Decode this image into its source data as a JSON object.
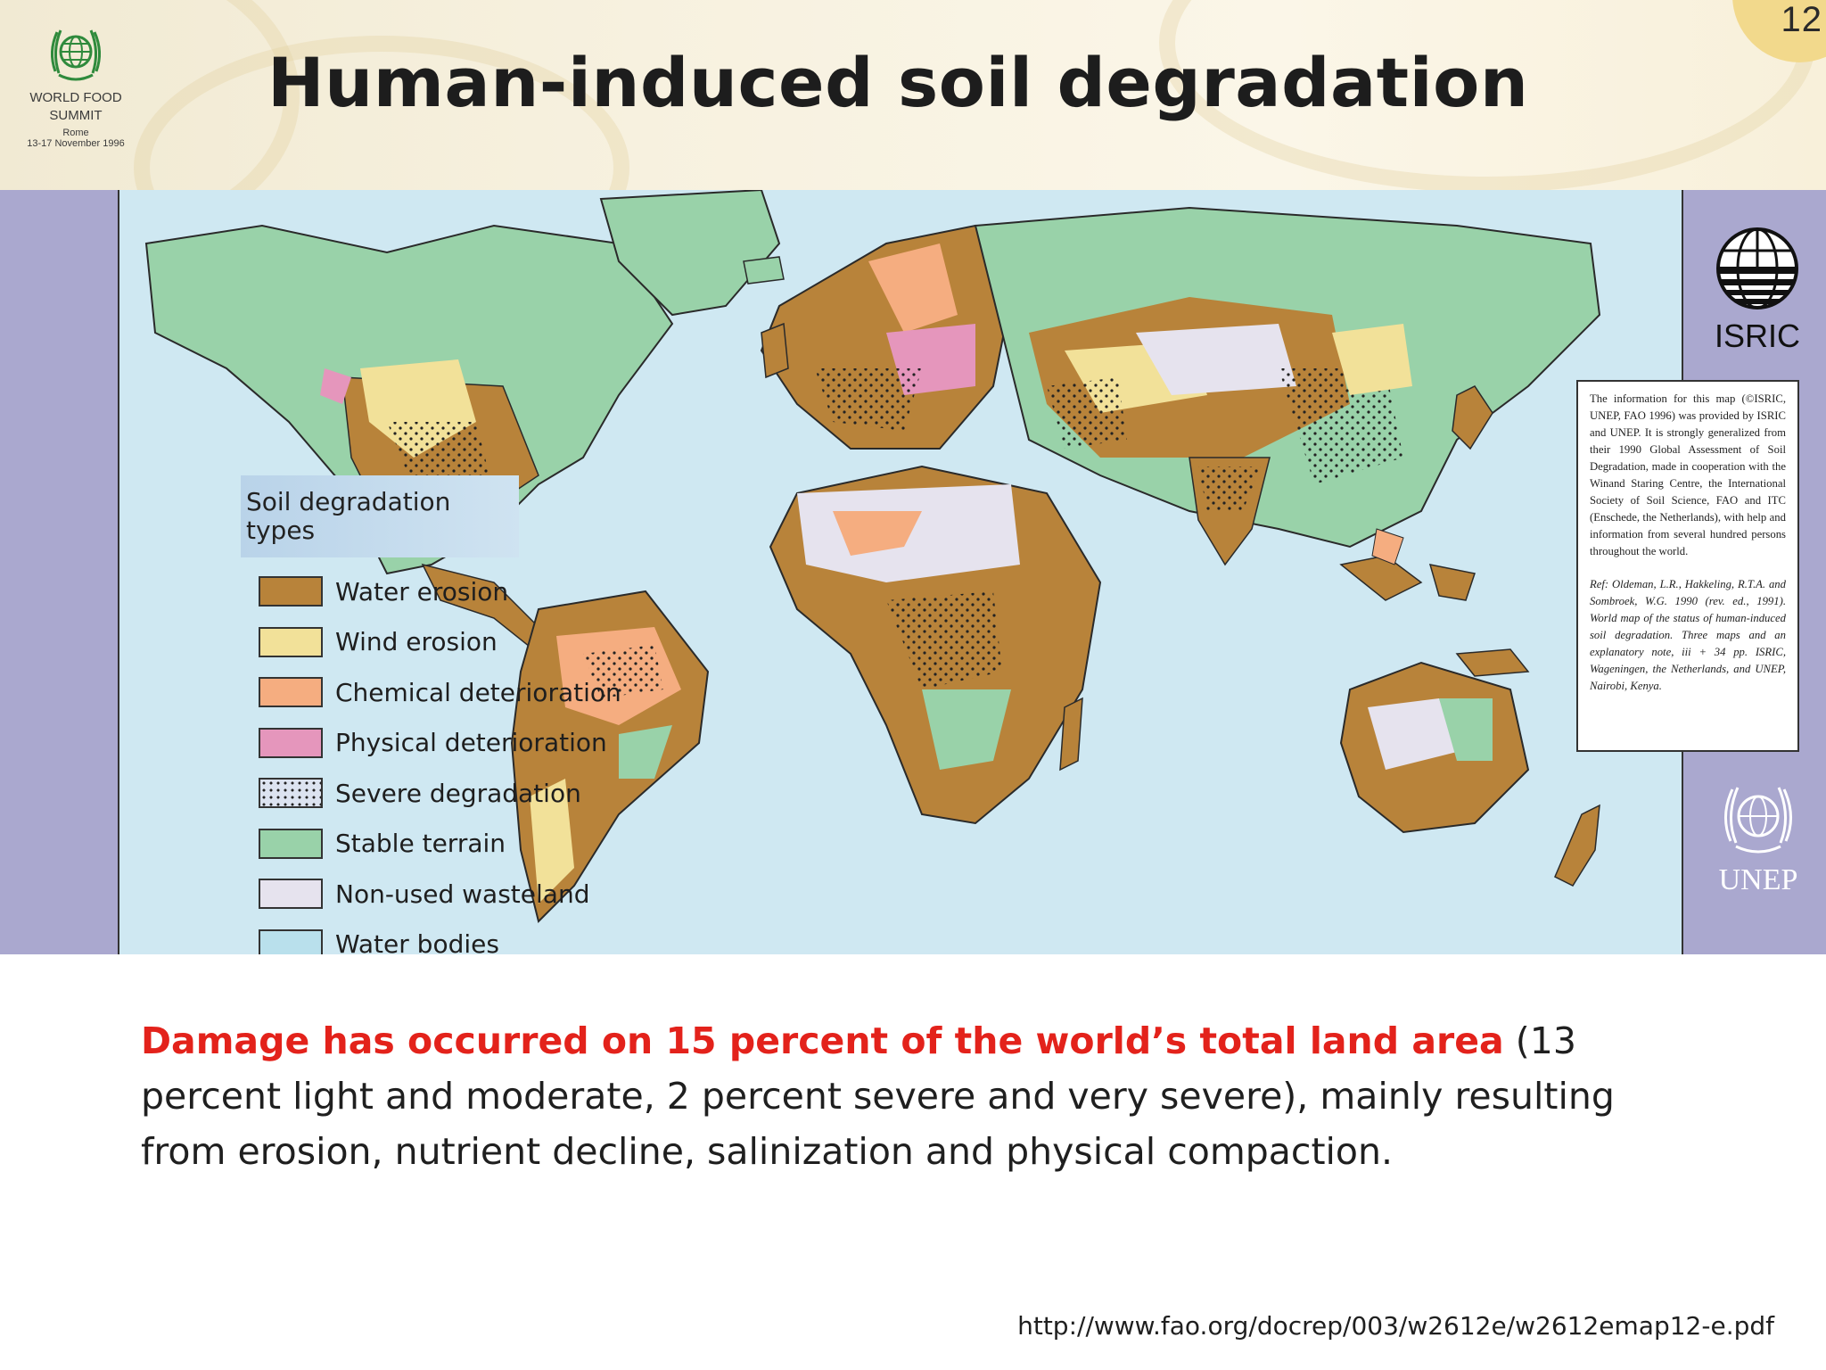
{
  "header": {
    "title": "Human-induced soil degradation",
    "page_number": "12",
    "logo": {
      "icon": "world-food-summit-globe-icon",
      "org_line1": "WORLD FOOD",
      "org_line2": "SUMMIT",
      "city": "Rome",
      "dates": "13-17 November 1996"
    }
  },
  "map": {
    "legend": {
      "heading": "Soil degradation\ntypes",
      "items": [
        {
          "label": "Water erosion",
          "color": "#b8833a"
        },
        {
          "label": "Wind erosion",
          "color": "#f2e199"
        },
        {
          "label": "Chemical deterioration",
          "color": "#f5ad80"
        },
        {
          "label": "Physical deterioration",
          "color": "#e596bc"
        },
        {
          "label": "Severe degradation",
          "color": "#dce3f0",
          "pattern": "dotted"
        },
        {
          "label": "Stable terrain",
          "color": "#99d2a9"
        },
        {
          "label": "Non-used wasteland",
          "color": "#e6e3ee"
        },
        {
          "label": "Water bodies",
          "color": "#b9e0ec"
        }
      ]
    },
    "ocean_color": "#cfe8f2",
    "isric_logo": {
      "icon": "isric-globe-icon",
      "label": "ISRIC"
    },
    "unep_logo": {
      "icon": "unep-laurel-globe-icon",
      "label": "UNEP"
    },
    "info_box": {
      "text": "The information for this map (©ISRIC, UNEP, FAO 1996) was provided by ISRIC and UNEP. It is strongly generalized from their 1990 Global Assessment of Soil Degradation, made in cooperation with the Winand Staring Centre, the International Society of Soil Science, FAO and ITC (Enschede, the Netherlands), with help and information from several hundred persons throughout the world.",
      "reference": "Ref: Oldeman, L.R., Hakkeling, R.T.A. and Sombroek, W.G. 1990 (rev. ed., 1991). World map of the status of human-induced soil degradation. Three maps and an explanatory note, iii + 34 pp. ISRIC, Wageningen, the Netherlands, and UNEP, Nairobi, Kenya."
    }
  },
  "caption": {
    "highlight": "Damage has occurred on 15 percent of the world’s total land area",
    "rest": " (13 percent light and moderate, 2 percent severe and very severe), mainly resulting from erosion, nutrient decline, salinization and physical compaction."
  },
  "source_url": "http://www.fao.org/docrep/003/w2612e/w2612emap12-e.pdf"
}
